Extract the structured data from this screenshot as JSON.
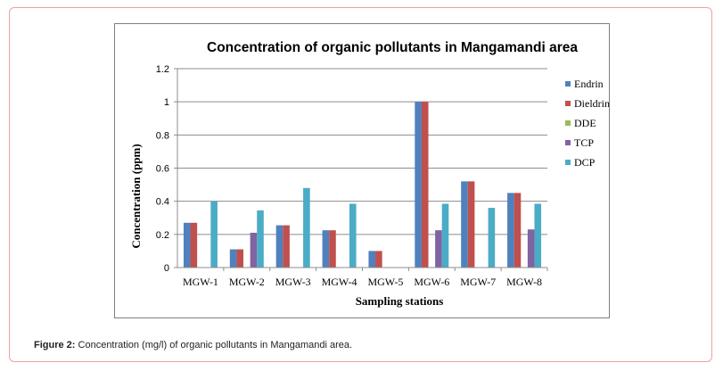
{
  "caption": {
    "label": "Figure 2:",
    "text": "Concentration (mg/l) of organic pollutants in Mangamandi area."
  },
  "chart_data": {
    "type": "bar",
    "title": "Concentration of organic pollutants in Mangamandi area",
    "xlabel": "Sampling stations",
    "ylabel": "Concentration (ppm)",
    "ylim": [
      0,
      1.2
    ],
    "yticks": [
      "0",
      "0.2",
      "0.4",
      "0.6",
      "0.8",
      "1",
      "1.2"
    ],
    "grid": true,
    "legend_position": "right",
    "categories": [
      "MGW-1",
      "MGW-2",
      "MGW-3",
      "MGW-4",
      "MGW-5",
      "MGW-6",
      "MGW-7",
      "MGW-8"
    ],
    "series": [
      {
        "name": "Endrin",
        "color": "#4f81bd",
        "values": [
          0.27,
          0.11,
          0.255,
          0.225,
          0.1,
          1.0,
          0.52,
          0.45
        ]
      },
      {
        "name": "Dieldrin",
        "color": "#c0504d",
        "values": [
          0.27,
          0.11,
          0.255,
          0.225,
          0.1,
          1.0,
          0.52,
          0.45
        ]
      },
      {
        "name": "DDE",
        "color": "#9bbb59",
        "values": [
          0,
          0,
          0,
          0,
          0,
          0,
          0,
          0
        ]
      },
      {
        "name": "TCP",
        "color": "#8064a2",
        "values": [
          0,
          0.21,
          0,
          0,
          0,
          0.225,
          0,
          0.23
        ]
      },
      {
        "name": "DCP",
        "color": "#4bacc6",
        "values": [
          0.4,
          0.345,
          0.48,
          0.385,
          0,
          0.385,
          0.36,
          0.385
        ]
      }
    ]
  }
}
